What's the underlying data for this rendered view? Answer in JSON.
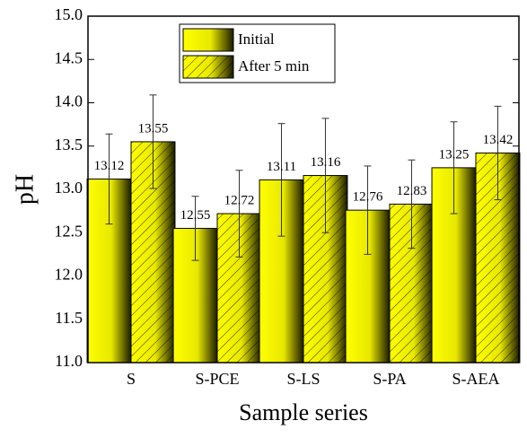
{
  "chart_data": {
    "type": "bar",
    "x_label": "Sample series",
    "y_label": "pH",
    "categories": [
      "S",
      "S-PCE",
      "S-LS",
      "S-PA",
      "S-AEA"
    ],
    "series": [
      {
        "name": "Initial",
        "color": "#ffff00",
        "hatch": false,
        "values": [
          13.12,
          12.55,
          13.11,
          12.76,
          13.25
        ],
        "errors": [
          0.52,
          0.37,
          0.65,
          0.51,
          0.53
        ]
      },
      {
        "name": "After 5 min",
        "color": "#ffff00",
        "hatch": true,
        "values": [
          13.55,
          12.72,
          13.16,
          12.83,
          13.42
        ],
        "errors": [
          0.54,
          0.5,
          0.66,
          0.51,
          0.54
        ]
      }
    ],
    "ylim": [
      11,
      15
    ],
    "yticks": [
      {
        "value": 11,
        "label": "11.0"
      },
      {
        "value": 11.5,
        "label": "11.5"
      },
      {
        "value": 12,
        "label": "12.0"
      },
      {
        "value": 12.5,
        "label": "12.5"
      },
      {
        "value": 13,
        "label": "13.0"
      },
      {
        "value": 13.5,
        "label": "13.5"
      },
      {
        "value": 14,
        "label": "14.0"
      },
      {
        "value": 14.5,
        "label": "14.5"
      },
      {
        "value": 15,
        "label": "15.0"
      }
    ],
    "legend": "top-center"
  }
}
